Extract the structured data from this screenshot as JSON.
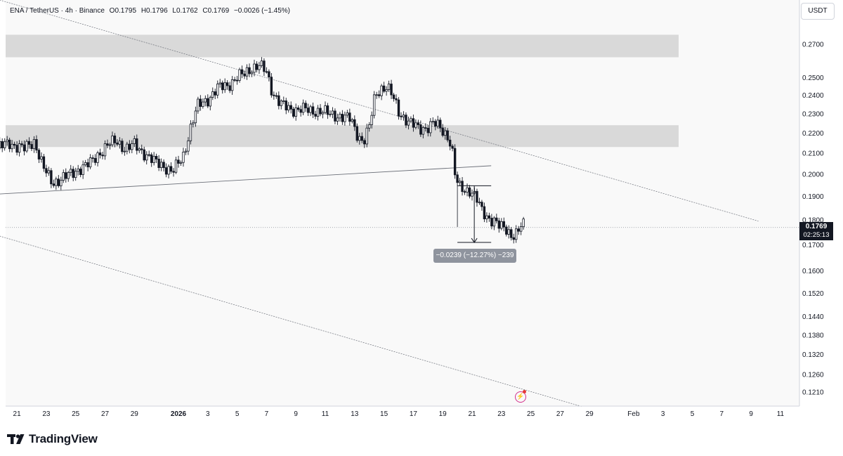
{
  "header": {
    "symbol": "ENA / TetherUS · 4h · Binance",
    "open": "O0.1795",
    "high": "H0.1796",
    "low": "L0.1762",
    "close": "C0.1769",
    "change": "−0.0026 (−1.45%)"
  },
  "currency_button": "USDT",
  "price_tag": {
    "price": "0.1769",
    "countdown": "02:25:13"
  },
  "measure_label": "−0.0239 (−12.27%) −239",
  "logo": {
    "text": "TradingView"
  },
  "colors": {
    "candle": "#131722",
    "zone": "#d9d9d9",
    "price_tag_bg": "#131722",
    "measure_bg": "#8f949e",
    "alert_icon": "#d32f8a"
  },
  "icons": [
    "tradingview-logo-icon",
    "lightning-alert-icon"
  ],
  "chart_data": {
    "type": "candlestick",
    "symbol": "ENA / TetherUS",
    "interval": "4h",
    "exchange": "Binance",
    "y_scale": "log",
    "ylim": [
      0.116,
      0.29
    ],
    "y_ticks": [
      "0.2700",
      "0.2500",
      "0.2400",
      "0.2300",
      "0.2200",
      "0.2100",
      "0.2000",
      "0.1900",
      "0.1800",
      "0.1700",
      "0.1600",
      "0.1520",
      "0.1440",
      "0.1380",
      "0.1320",
      "0.1260",
      "0.1210"
    ],
    "x_ticks": [
      "21",
      "23",
      "25",
      "27",
      "29",
      "2026",
      "3",
      "5",
      "7",
      "9",
      "11",
      "13",
      "15",
      "17",
      "19",
      "21",
      "23",
      "25",
      "27",
      "29",
      "Feb",
      "3",
      "5",
      "7",
      "9",
      "11"
    ],
    "x_tick_days": [
      -11,
      -9,
      -7,
      -5,
      -3,
      0,
      2,
      4,
      6,
      8,
      10,
      12,
      14,
      16,
      18,
      20,
      22,
      24,
      26,
      28,
      31,
      33,
      35,
      37,
      39,
      41
    ],
    "last_price": 0.1769,
    "zones": [
      {
        "from": 0.262,
        "to": 0.276
      },
      {
        "from": 0.213,
        "to": 0.224
      }
    ],
    "close_path": [
      [
        -12.5,
        0.212
      ],
      [
        -11.5,
        0.215
      ],
      [
        -10.5,
        0.212
      ],
      [
        -9.8,
        0.216
      ],
      [
        -9.2,
        0.203
      ],
      [
        -8.6,
        0.196
      ],
      [
        -8.0,
        0.198
      ],
      [
        -7.3,
        0.2
      ],
      [
        -6.7,
        0.203
      ],
      [
        -6.0,
        0.205
      ],
      [
        -5.4,
        0.21
      ],
      [
        -4.8,
        0.214
      ],
      [
        -4.2,
        0.216
      ],
      [
        -3.6,
        0.212
      ],
      [
        -3.0,
        0.214
      ],
      [
        -2.3,
        0.21
      ],
      [
        -1.7,
        0.206
      ],
      [
        -1.0,
        0.204
      ],
      [
        -0.4,
        0.201
      ],
      [
        0.3,
        0.208
      ],
      [
        0.8,
        0.222
      ],
      [
        1.3,
        0.234
      ],
      [
        2.0,
        0.238
      ],
      [
        2.7,
        0.244
      ],
      [
        3.4,
        0.246
      ],
      [
        4.0,
        0.25
      ],
      [
        4.5,
        0.252
      ],
      [
        5.0,
        0.256
      ],
      [
        5.5,
        0.257
      ],
      [
        6.0,
        0.253
      ],
      [
        6.4,
        0.242
      ],
      [
        7.0,
        0.235
      ],
      [
        7.6,
        0.232
      ],
      [
        8.3,
        0.233
      ],
      [
        9.0,
        0.231
      ],
      [
        9.7,
        0.232
      ],
      [
        10.4,
        0.229
      ],
      [
        11.1,
        0.229
      ],
      [
        11.7,
        0.227
      ],
      [
        12.2,
        0.219
      ],
      [
        12.6,
        0.216
      ],
      [
        13.0,
        0.223
      ],
      [
        13.4,
        0.24
      ],
      [
        13.8,
        0.244
      ],
      [
        14.2,
        0.245
      ],
      [
        14.6,
        0.239
      ],
      [
        15.0,
        0.231
      ],
      [
        15.4,
        0.228
      ],
      [
        15.8,
        0.225
      ],
      [
        16.4,
        0.222
      ],
      [
        16.9,
        0.223
      ],
      [
        17.4,
        0.225
      ],
      [
        17.9,
        0.222
      ],
      [
        18.3,
        0.219
      ],
      [
        18.6,
        0.214
      ],
      [
        18.85,
        0.199
      ],
      [
        19.1,
        0.194
      ],
      [
        19.5,
        0.193
      ],
      [
        19.9,
        0.193
      ],
      [
        20.3,
        0.189
      ],
      [
        20.7,
        0.183
      ],
      [
        21.1,
        0.181
      ],
      [
        21.5,
        0.18
      ],
      [
        21.9,
        0.177
      ],
      [
        22.3,
        0.176
      ],
      [
        22.7,
        0.174
      ],
      [
        23.1,
        0.175
      ],
      [
        23.4,
        0.178
      ],
      [
        23.6,
        0.1769
      ]
    ],
    "trendlines": [
      {
        "name": "upper-resistance",
        "from": [
          -12.5,
          0.3
        ],
        "to": [
          39.5,
          0.1795
        ]
      },
      {
        "name": "lower-channel",
        "from": [
          -12.5,
          0.174
        ],
        "to": [
          27.5,
          0.117
        ]
      },
      {
        "name": "broken-support",
        "from": [
          -12.5,
          0.191
        ],
        "to": [
          21.3,
          0.204
        ]
      }
    ],
    "measure": {
      "from": [
        19.0,
        0.1948
      ],
      "to": [
        21.3,
        0.1709
      ],
      "label": "−0.0239 (−12.27%) −239"
    }
  }
}
